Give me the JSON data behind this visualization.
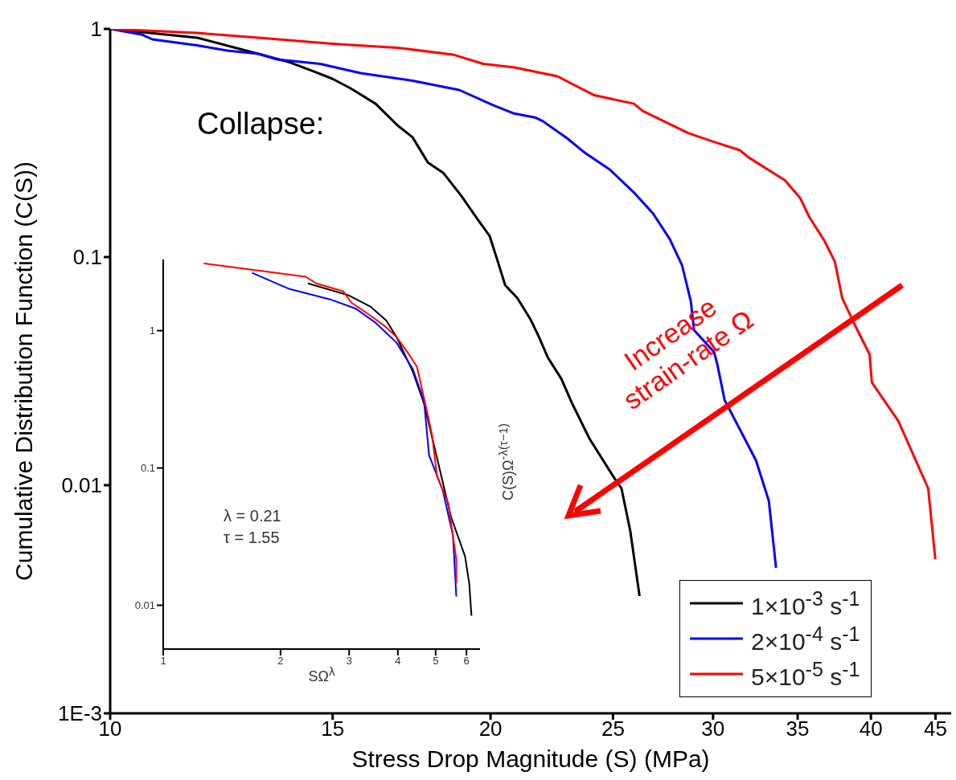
{
  "chart_data": [
    {
      "type": "line",
      "xlabel": "Stress Drop Magnitude (S) (MPa)",
      "ylabel": "Cumulative Distribution Function (C(S))",
      "log": "xy",
      "xlim": [
        10,
        46.3
      ],
      "xticks": [
        10,
        15,
        20,
        25,
        30,
        35,
        40,
        45
      ],
      "ylim": [
        0.001,
        1
      ],
      "yticks": [
        1,
        0.1,
        0.01,
        {
          "value": 0.001,
          "label": "1E-3"
        }
      ],
      "legend": "bottom right",
      "marker": "none",
      "line_style": "solid",
      "annotations": [
        "Collapse:",
        "Increase strain-rate Ω"
      ],
      "series": [
        {
          "name": "1×10$^{-3}$ s$^{-1}$",
          "color": "#000000",
          "x": [
            10,
            11.72,
            12.74,
            13.87,
            14.49,
            14.99,
            15.5,
            16.22,
            16.88,
            17.35,
            17.84,
            18.35,
            18.97,
            19.54,
            19.97,
            20.3,
            20.54,
            21.0,
            21.5,
            21.84,
            22.2,
            22.76,
            23.2,
            23.95,
            25.06,
            25.39,
            25.8,
            26.24
          ],
          "values": [
            1,
            0.915,
            0.81,
            0.714,
            0.651,
            0.605,
            0.549,
            0.47,
            0.378,
            0.335,
            0.26,
            0.234,
            0.185,
            0.146,
            0.1235,
            0.0929,
            0.0753,
            0.0661,
            0.0536,
            0.0448,
            0.0363,
            0.0292,
            0.0229,
            0.016,
            0.01075,
            0.00968,
            0.0063,
            0.00327
          ]
        },
        {
          "name": "2×10$^{-4}$ s$^{-1}$",
          "color": "#0000ff",
          "x": [
            10,
            10.59,
            10.8,
            11.72,
            12.38,
            13.11,
            13.56,
            14.66,
            15.78,
            17.35,
            18.89,
            20.09,
            20.84,
            21.72,
            22.0,
            22.99,
            23.78,
            24.85,
            25.97,
            26.9,
            27.73,
            28.35,
            28.81,
            28.98,
            30.06,
            30.24,
            30.64,
            32.44,
            33.21,
            33.65
          ],
          "values": [
            1,
            0.945,
            0.9,
            0.847,
            0.803,
            0.778,
            0.735,
            0.703,
            0.64,
            0.593,
            0.54,
            0.463,
            0.427,
            0.408,
            0.394,
            0.332,
            0.285,
            0.242,
            0.192,
            0.155,
            0.1196,
            0.0922,
            0.064,
            0.0478,
            0.0383,
            0.0337,
            0.0236,
            0.01286,
            0.00854,
            0.00434
          ]
        },
        {
          "name": "5×10$^{-5}$ s$^{-1}$",
          "color": "#ff0000",
          "x": [
            10,
            11.72,
            13.11,
            15.0,
            16.88,
            18.67,
            19.74,
            20.9,
            22.59,
            24.16,
            25.97,
            26.39,
            28.69,
            29.98,
            31.5,
            32.02,
            34.2,
            35.17,
            35.74,
            36.75,
            37.46,
            37.96,
            39.03,
            39.9,
            40.07,
            42.05,
            44.4,
            44.98
          ],
          "values": [
            1,
            0.96,
            0.915,
            0.861,
            0.827,
            0.772,
            0.703,
            0.678,
            0.62,
            0.512,
            0.47,
            0.437,
            0.349,
            0.321,
            0.294,
            0.273,
            0.217,
            0.181,
            0.1503,
            0.1178,
            0.0953,
            0.0661,
            0.0478,
            0.0375,
            0.0282,
            0.0191,
            0.00968,
            0.00474
          ]
        }
      ]
    },
    {
      "type": "line",
      "xlabel": "SΩ$^{λ}$",
      "ylabel": "C(S)Ω$^{-λ(τ−1)}$",
      "log": "xy",
      "xlim": [
        1,
        6.5
      ],
      "xticks": [
        1,
        2,
        3,
        4,
        5,
        6
      ],
      "ylim": [
        0.0048,
        3.3
      ],
      "yticks": [
        0.01,
        0.1,
        1
      ],
      "marker": "none",
      "line_style": "solid",
      "annotations": [
        "λ = 0.21",
        "τ = 1.55"
      ],
      "series": [
        {
          "color": "#000000",
          "x": [
            2.35,
            2.99,
            3.4,
            3.74,
            3.97,
            4.37,
            4.67,
            5.04,
            5.47,
            5.95,
            6.1,
            6.18
          ],
          "values": [
            2.21,
            1.81,
            1.5,
            1.18,
            0.898,
            0.503,
            0.294,
            0.119,
            0.0446,
            0.0227,
            0.0144,
            0.0084
          ]
        },
        {
          "color": "#0000ff",
          "x": [
            1.69,
            2.11,
            2.68,
            3.13,
            3.51,
            3.97,
            4.37,
            4.67,
            4.81,
            5.21,
            5.54,
            5.65
          ],
          "values": [
            2.64,
            2.01,
            1.69,
            1.44,
            1.14,
            0.817,
            0.524,
            0.306,
            0.124,
            0.0695,
            0.0323,
            0.0116
          ]
        },
        {
          "color": "#ff0000",
          "x": [
            1.27,
            1.69,
            2.32,
            2.47,
            2.9,
            3.04,
            3.4,
            3.74,
            3.97,
            4.25,
            4.48,
            4.74,
            4.9,
            5.04,
            5.39,
            5.65,
            5.65
          ],
          "values": [
            3.09,
            2.78,
            2.47,
            2.21,
            1.93,
            1.6,
            1.29,
            1.055,
            0.898,
            0.686,
            0.545,
            0.267,
            0.171,
            0.0874,
            0.0553,
            0.0215,
            0.0144
          ]
        }
      ]
    }
  ]
}
